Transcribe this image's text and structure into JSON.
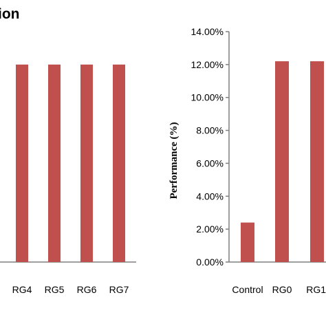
{
  "colors": {
    "bar": "#c0504d",
    "axis": "#7f7f7f",
    "text": "#000000"
  },
  "chart_data": [
    {
      "type": "bar",
      "title": "ion",
      "categories": [
        "RG4",
        "RG5",
        "RG6",
        "RG7"
      ],
      "values": [
        12.0,
        12.0,
        12.0,
        12.0
      ],
      "xlabel": "",
      "ylabel": "",
      "ylim": [
        0,
        14
      ],
      "grid": false,
      "legend": "none"
    },
    {
      "type": "bar",
      "title": "",
      "categories": [
        "Control",
        "RG0",
        "RG1"
      ],
      "values": [
        2.4,
        12.2,
        12.2
      ],
      "ticks": [
        "0.00%",
        "2.00%",
        "4.00%",
        "6.00%",
        "8.00%",
        "10.00%",
        "12.00%",
        "14.00%"
      ],
      "xlabel": "",
      "ylabel": "Performance (%)",
      "ylim": [
        0,
        14
      ],
      "grid": false,
      "legend": "none"
    }
  ]
}
